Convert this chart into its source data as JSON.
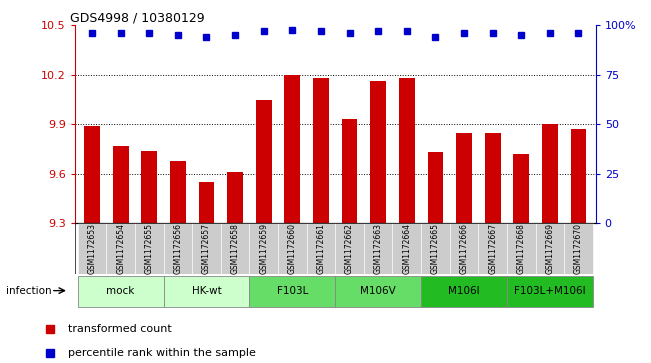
{
  "title": "GDS4998 / 10380129",
  "samples": [
    "GSM1172653",
    "GSM1172654",
    "GSM1172655",
    "GSM1172656",
    "GSM1172657",
    "GSM1172658",
    "GSM1172659",
    "GSM1172660",
    "GSM1172661",
    "GSM1172662",
    "GSM1172663",
    "GSM1172664",
    "GSM1172665",
    "GSM1172666",
    "GSM1172667",
    "GSM1172668",
    "GSM1172669",
    "GSM1172670"
  ],
  "bar_values": [
    9.89,
    9.77,
    9.74,
    9.68,
    9.55,
    9.61,
    10.05,
    10.2,
    10.18,
    9.93,
    10.16,
    10.18,
    9.73,
    9.85,
    9.85,
    9.72,
    9.9,
    9.87
  ],
  "percentile_values": [
    96,
    96,
    96,
    95,
    94,
    95,
    97,
    97.5,
    97,
    96,
    97,
    97,
    94,
    96,
    96,
    95,
    96,
    96
  ],
  "bar_color": "#cc0000",
  "dot_color": "#0000cc",
  "ylim_left": [
    9.3,
    10.5
  ],
  "ylim_right": [
    0,
    100
  ],
  "yticks_left": [
    9.3,
    9.6,
    9.9,
    10.2,
    10.5
  ],
  "yticks_right": [
    0,
    25,
    50,
    75,
    100
  ],
  "group_configs": [
    {
      "label": "mock",
      "start": 0,
      "end": 2,
      "color": "#ccffcc"
    },
    {
      "label": "HK-wt",
      "start": 3,
      "end": 5,
      "color": "#ccffcc"
    },
    {
      "label": "F103L",
      "start": 6,
      "end": 8,
      "color": "#66dd66"
    },
    {
      "label": "M106V",
      "start": 9,
      "end": 11,
      "color": "#66dd66"
    },
    {
      "label": "M106I",
      "start": 12,
      "end": 14,
      "color": "#22bb22"
    },
    {
      "label": "F103L+M106I",
      "start": 15,
      "end": 17,
      "color": "#22bb22"
    }
  ],
  "infection_label": "infection",
  "legend_bar_label": "transformed count",
  "legend_dot_label": "percentile rank within the sample",
  "axis_color_left": "#cc0000",
  "axis_color_right": "#0000cc",
  "sample_bg_color": "#cccccc",
  "grid_dotted_values": [
    9.6,
    9.9,
    10.2
  ]
}
